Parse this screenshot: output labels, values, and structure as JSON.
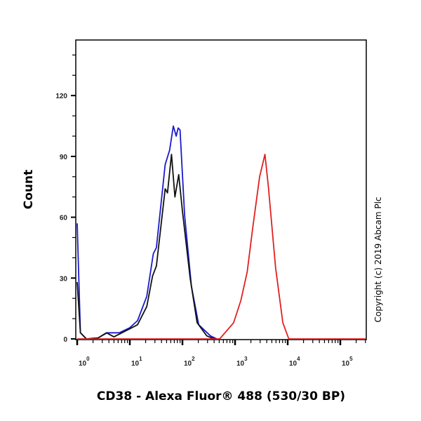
{
  "chart_data": {
    "type": "line",
    "title": "",
    "xlabel": "CD38 - Alexa Fluor® 488 (530/30 BP)",
    "ylabel": "Count",
    "x_scale": "log",
    "xlim": [
      1,
      300000
    ],
    "ylim": [
      0,
      147
    ],
    "x_tick_labels": [
      {
        "base": "10",
        "exp": "0",
        "value": 1
      },
      {
        "base": "10",
        "exp": "1",
        "value": 10
      },
      {
        "base": "10",
        "exp": "2",
        "value": 100
      },
      {
        "base": "10",
        "exp": "3",
        "value": 1000
      },
      {
        "base": "10",
        "exp": "4",
        "value": 10000
      },
      {
        "base": "10",
        "exp": "5",
        "value": 100000
      }
    ],
    "y_ticks": [
      0,
      30,
      60,
      90,
      120
    ],
    "y_minor_ticks": [
      10,
      20,
      40,
      50,
      70,
      80,
      100,
      110,
      130,
      140
    ],
    "grid": false,
    "legend": "none",
    "series": [
      {
        "color": "#1a1acc",
        "x": [
          1,
          1.15,
          1.5,
          2.5,
          3.7,
          6.3,
          10,
          14,
          21,
          28,
          32,
          47,
          57,
          67,
          76,
          83,
          90,
          110,
          148,
          204,
          340,
          450
        ],
        "y": [
          57,
          3,
          0,
          0.5,
          3,
          3,
          5.5,
          9,
          21,
          42,
          45,
          86,
          93,
          105,
          100,
          104,
          103,
          61,
          26,
          7,
          1.5,
          0
        ]
      },
      {
        "color": "#111111",
        "x": [
          1,
          1.15,
          1.5,
          2.5,
          3.6,
          5,
          10,
          14,
          21,
          27,
          32,
          47,
          52,
          62,
          72,
          85,
          100,
          140,
          190,
          290,
          400
        ],
        "y": [
          28,
          3,
          0,
          0.5,
          3,
          1,
          5,
          7,
          16,
          31,
          36,
          74,
          72,
          91,
          70,
          81,
          63,
          30,
          8,
          1.5,
          0
        ]
      },
      {
        "color": "#e02020",
        "x": [
          1,
          510,
          940,
          1290,
          1700,
          2150,
          2930,
          3700,
          4300,
          5900,
          8100,
          10500,
          300000
        ],
        "y": [
          0,
          0,
          8,
          19,
          33,
          54,
          80,
          91,
          75,
          35,
          8,
          0,
          0
        ]
      }
    ]
  },
  "copyright": "Copyright (c) 2019 Abcam Plc"
}
